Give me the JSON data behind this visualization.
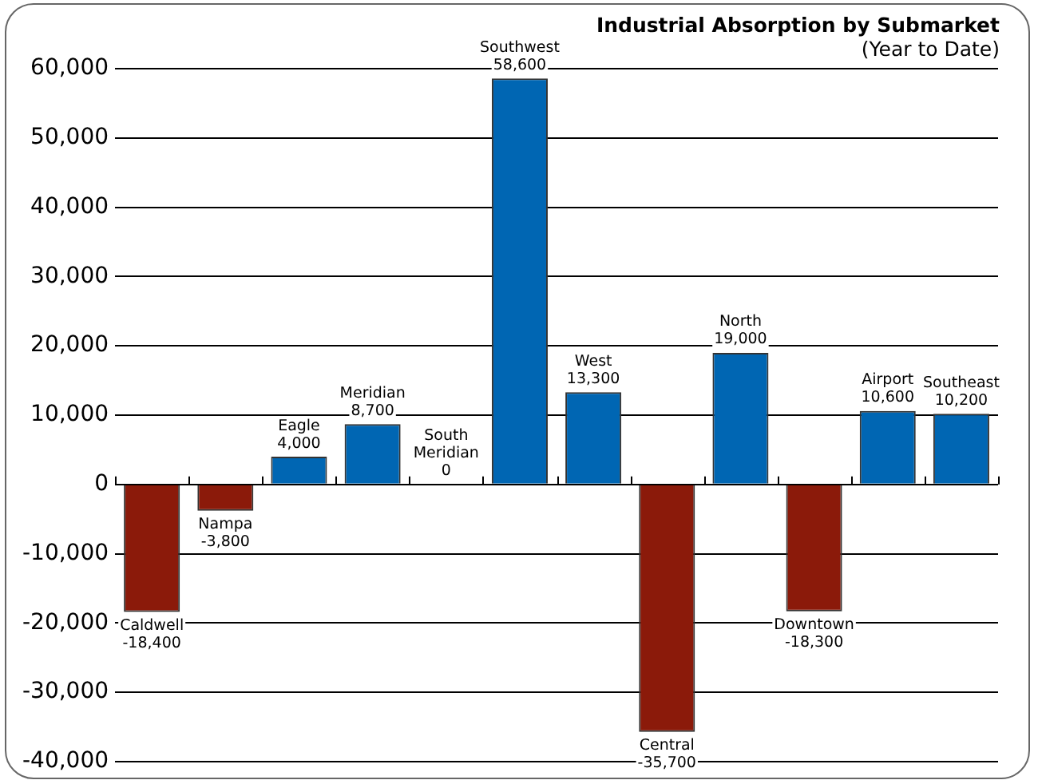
{
  "chart_data": {
    "type": "bar",
    "title": "Industrial Absorption by Submarket",
    "subtitle": "(Year to Date)",
    "categories": [
      "Caldwell",
      "Nampa",
      "Eagle",
      "Meridian",
      "South Meridian",
      "Southwest",
      "West",
      "Central",
      "North",
      "Downtown",
      "Airport",
      "Southeast"
    ],
    "values": [
      -18400,
      -3800,
      4000,
      8700,
      0,
      58600,
      13300,
      -35700,
      19000,
      -18300,
      10600,
      10200
    ],
    "value_labels": [
      "-18,400",
      "-3,800",
      "4,000",
      "8,700",
      "0",
      "58,600",
      "13,300",
      "-35,700",
      "19,000",
      "-18,300",
      "10,600",
      "10,200"
    ],
    "colors": [
      "#8b1a0a",
      "#8b1a0a",
      "#0066b3",
      "#0066b3",
      "#0066b3",
      "#0066b3",
      "#0066b3",
      "#8b1a0a",
      "#0066b3",
      "#8b1a0a",
      "#0066b3",
      "#0066b3"
    ],
    "ylim": [
      -40000,
      60000
    ],
    "yticks": [
      {
        "value": -40000,
        "label": "-40,000"
      },
      {
        "value": -30000,
        "label": "-30,000"
      },
      {
        "value": -20000,
        "label": "-20,000"
      },
      {
        "value": -10000,
        "label": "-10,000"
      },
      0,
      {
        "value": 10000,
        "label": "10,000"
      },
      {
        "value": 20000,
        "label": "20,000"
      },
      {
        "value": 30000,
        "label": "30,000"
      },
      {
        "value": 40000,
        "label": "40,000"
      },
      {
        "value": 50000,
        "label": "50,000"
      },
      {
        "value": 60000,
        "label": "60,000"
      }
    ],
    "grid": "y",
    "legend": false
  }
}
